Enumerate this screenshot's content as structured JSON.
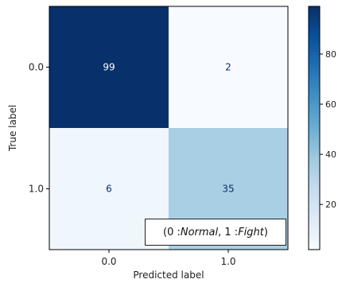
{
  "chart_data": {
    "type": "heatmap",
    "title": "",
    "xlabel": "Predicted label",
    "ylabel": "True label",
    "x_categories": [
      "0.0",
      "1.0"
    ],
    "y_categories": [
      "0.0",
      "1.0"
    ],
    "values": [
      [
        99,
        2
      ],
      [
        6,
        35
      ]
    ],
    "colormap": "Blues",
    "colorbar": {
      "ticks": [
        20,
        40,
        60,
        80
      ],
      "range": [
        2,
        99
      ]
    },
    "annotation": {
      "open": "(0 : ",
      "class0": "Normal",
      "sep": ", 1 : ",
      "class1": "Fight",
      "close": ")"
    },
    "colors": {
      "low": "#f7fbff",
      "high": "#08306b"
    }
  }
}
